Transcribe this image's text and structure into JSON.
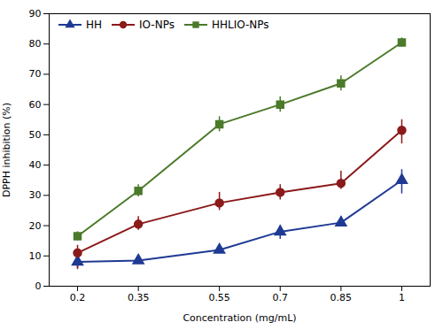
{
  "chart_data": {
    "type": "line",
    "xlabel": "Concentration (mg/mL)",
    "ylabel": "DPPH inhibition (%)",
    "x": [
      0.2,
      0.35,
      0.55,
      0.7,
      0.85,
      1.0
    ],
    "series": [
      {
        "name": "HH",
        "color": "#1F3A93",
        "marker": "triangle",
        "values": [
          8,
          8.5,
          12,
          18,
          21,
          35
        ],
        "yerr_upper": [
          1.5,
          1.5,
          1.5,
          2.0,
          2.0,
          3.5
        ],
        "yerr_lower": [
          2.0,
          1.0,
          1.0,
          2.5,
          1.0,
          4.5
        ]
      },
      {
        "name": "IO-NPs",
        "color": "#8B1A1A",
        "marker": "circle",
        "values": [
          11,
          20.5,
          27.5,
          31,
          34,
          51.5
        ],
        "yerr_upper": [
          2.5,
          2.5,
          3.5,
          2.5,
          4.0,
          3.5
        ],
        "yerr_lower": [
          5.5,
          2.0,
          2.5,
          2.5,
          2.0,
          4.5
        ]
      },
      {
        "name": "HHLIO-NPs",
        "color": "#4B7A2A",
        "marker": "square",
        "values": [
          16.5,
          31.5,
          53.5,
          60,
          67,
          80.5
        ],
        "yerr_upper": [
          1.5,
          2.0,
          2.5,
          2.5,
          2.5,
          1.5
        ],
        "yerr_lower": [
          1.5,
          2.0,
          2.5,
          2.5,
          2.5,
          1.5
        ]
      }
    ],
    "xlim": [
      0.13,
      1.07
    ],
    "xticks": [
      0.2,
      0.35,
      0.55,
      0.7,
      0.85,
      1
    ],
    "ylim": [
      0,
      90
    ],
    "yticks": [
      0,
      10,
      20,
      30,
      40,
      50,
      60,
      70,
      80,
      90
    ],
    "legend": "upper left",
    "grid": false
  }
}
